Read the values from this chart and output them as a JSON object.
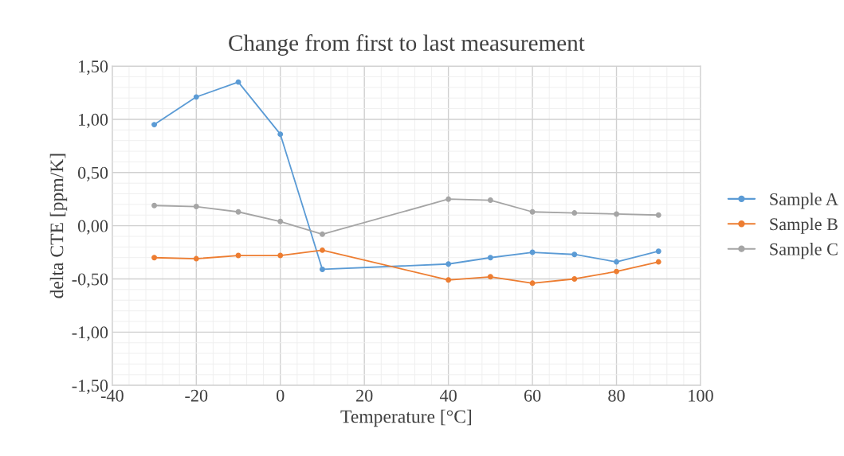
{
  "chart_data": {
    "type": "line",
    "title": "Change from first to last measurement",
    "xlabel": "Temperature [°C]",
    "ylabel": "delta CTE [ppm/K]",
    "x": [
      -30,
      -20,
      -10,
      0,
      10,
      40,
      50,
      60,
      70,
      80,
      90
    ],
    "series": [
      {
        "name": "Sample A",
        "color": "#5b9bd5",
        "values": [
          0.95,
          1.21,
          1.35,
          0.86,
          -0.41,
          -0.36,
          -0.3,
          -0.25,
          -0.27,
          -0.34,
          -0.24
        ]
      },
      {
        "name": "Sample B",
        "color": "#ed7d31",
        "values": [
          -0.3,
          -0.31,
          -0.28,
          -0.28,
          -0.23,
          -0.51,
          -0.48,
          -0.54,
          -0.5,
          -0.43,
          -0.34
        ]
      },
      {
        "name": "Sample C",
        "color": "#a5a5a5",
        "values": [
          0.19,
          0.18,
          0.13,
          0.04,
          -0.08,
          0.25,
          0.24,
          0.13,
          0.12,
          0.11,
          0.1
        ]
      }
    ],
    "xlim": [
      -40,
      100
    ],
    "xticks": [
      -40,
      -20,
      0,
      20,
      40,
      60,
      80,
      100
    ],
    "ylim": [
      -1.5,
      1.5
    ],
    "yticks": [
      {
        "value": -1.5,
        "label": "-1,50"
      },
      {
        "value": -1.0,
        "label": "-1,00"
      },
      {
        "value": -0.5,
        "label": "-0,50"
      },
      {
        "value": 0,
        "label": "0,00"
      },
      {
        "value": 0.5,
        "label": "0,50"
      },
      {
        "value": 1.0,
        "label": "1,00"
      },
      {
        "value": 1.5,
        "label": "1,50"
      }
    ],
    "grid": true,
    "legend": "right",
    "marker": "circle",
    "line_style": "solid"
  }
}
